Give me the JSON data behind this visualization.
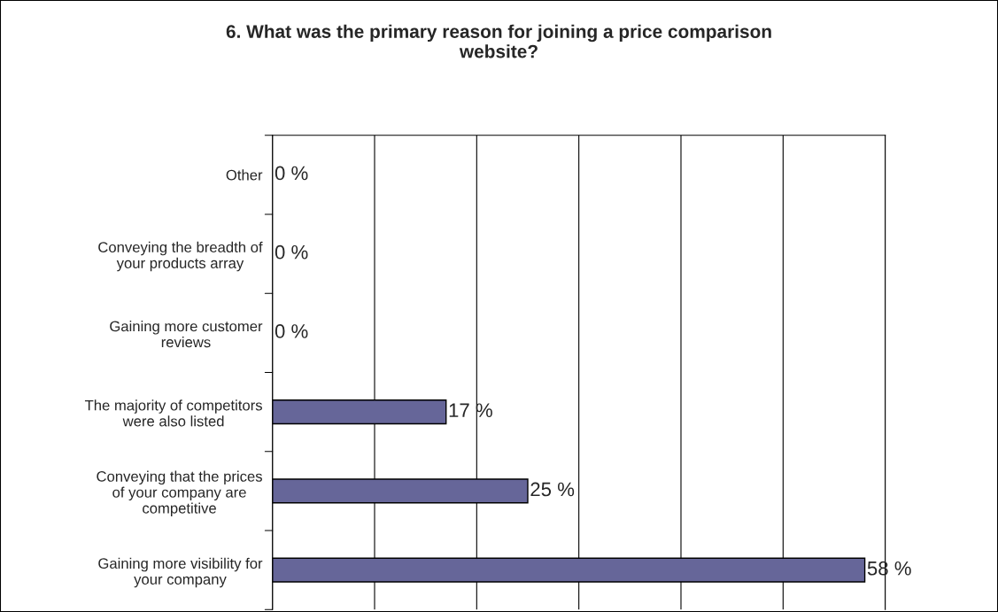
{
  "chart_data": {
    "type": "bar",
    "orientation": "horizontal",
    "title": "6. What was the primary reason for joining a price comparison\nwebsite?",
    "categories": [
      "Other",
      "Conveying the breadth of\nyour products array",
      "Gaining more customer\nreviews",
      "The majority of competitors\nwere also listed",
      "Conveying that the prices\nof your company are\ncompetitive",
      "Gaining more visibility for\nyour company"
    ],
    "values": [
      0,
      0,
      0,
      17,
      25,
      58
    ],
    "value_labels": [
      "0 %",
      "0 %",
      "0 %",
      "17 %",
      "25 %",
      "58 %"
    ],
    "color": "#666699",
    "xlim": [
      0,
      60
    ],
    "xticks": [
      {
        "value": 0,
        "label": null
      },
      {
        "value": 10,
        "label": null
      },
      {
        "value": 20,
        "label": null
      },
      {
        "value": 30,
        "label": null
      },
      {
        "value": 40,
        "label": null
      },
      {
        "value": 50,
        "label": null
      },
      {
        "value": 60,
        "label": null
      }
    ],
    "grid": "x",
    "legend": false
  }
}
